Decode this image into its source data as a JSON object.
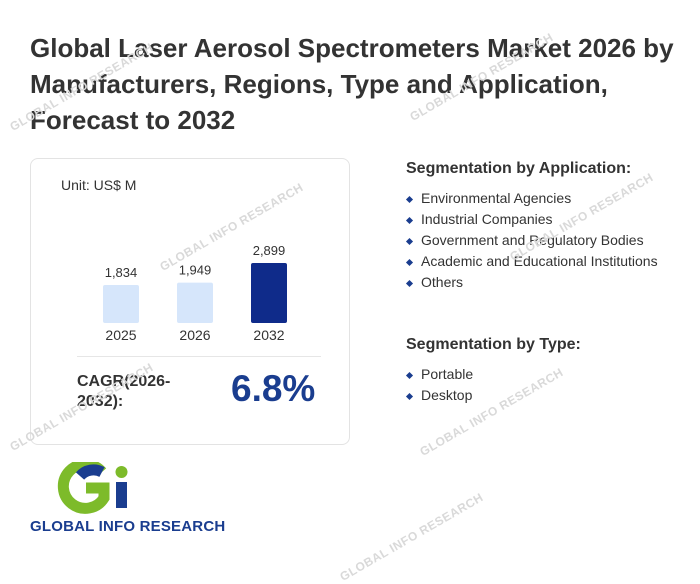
{
  "title": "Global Laser Aerosol Spectrometers Market 2026 by Manufacturers, Regions, Type and Application, Forecast to 2032",
  "card": {
    "unit": "Unit: US$ M",
    "cagr_label": "CAGR(2026-2032):",
    "cagr_value": "6.8%"
  },
  "chart_data": {
    "type": "bar",
    "categories": [
      "2025",
      "2026",
      "2032"
    ],
    "values": [
      1834,
      1949,
      2899
    ],
    "value_labels": [
      "1,834",
      "1,949",
      "2,899"
    ],
    "colors": [
      "#d6e6fb",
      "#d6e6fb",
      "#0f2b8a"
    ],
    "title": "",
    "xlabel": "",
    "ylabel": "",
    "ylim": [
      0,
      2899
    ]
  },
  "segmentation_application": {
    "heading": "Segmentation by Application:",
    "items": [
      "Environmental Agencies",
      "Industrial Companies",
      "Government and Regulatory Bodies",
      "Academic and Educational Institutions",
      "Others"
    ]
  },
  "segmentation_type": {
    "heading": "Segmentation by Type:",
    "items": [
      "Portable",
      "Desktop"
    ]
  },
  "logo": {
    "text": "GLOBAL INFO RESEARCH",
    "green": "#7dbb2a",
    "blue": "#1a3d8f"
  },
  "watermark": "GLOBAL INFO RESEARCH"
}
